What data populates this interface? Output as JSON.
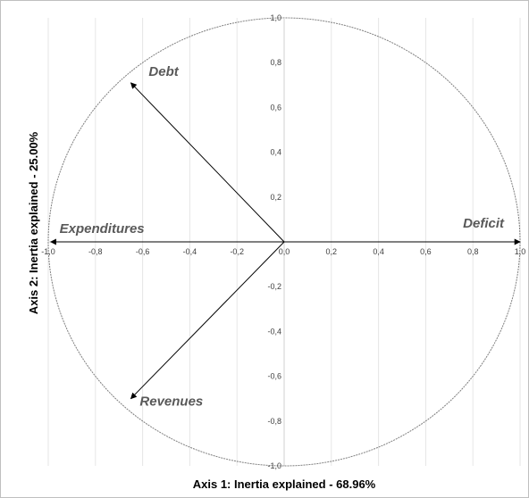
{
  "chart_data": {
    "type": "scatter",
    "subtype": "correlation-circle",
    "xlabel": "Axis 1: Inertia explained - 68.96%",
    "ylabel": "Axis 2: Inertia explained - 25.00%",
    "xlim": [
      -1.0,
      1.0
    ],
    "ylim": [
      -1.0,
      1.0
    ],
    "x_ticks": [
      "-1,0",
      "-0,8",
      "-0,6",
      "-0,4",
      "-0,2",
      "0,0",
      "0,2",
      "0,4",
      "0,6",
      "0,8",
      "1,0"
    ],
    "y_ticks": [
      "-1,0",
      "-0,8",
      "-0,6",
      "-0,4",
      "-0,2",
      "0,0",
      "0,2",
      "0,4",
      "0,6",
      "0,8",
      "1,0"
    ],
    "vertical_gridlines": true,
    "unit_circle": true,
    "vectors": [
      {
        "name": "Debt",
        "x": -0.65,
        "y": 0.71
      },
      {
        "name": "Deficit",
        "x": 1.0,
        "y": 0.0
      },
      {
        "name": "Expenditures",
        "x": -0.99,
        "y": 0.0
      },
      {
        "name": "Revenues",
        "x": -0.65,
        "y": -0.7
      }
    ]
  }
}
